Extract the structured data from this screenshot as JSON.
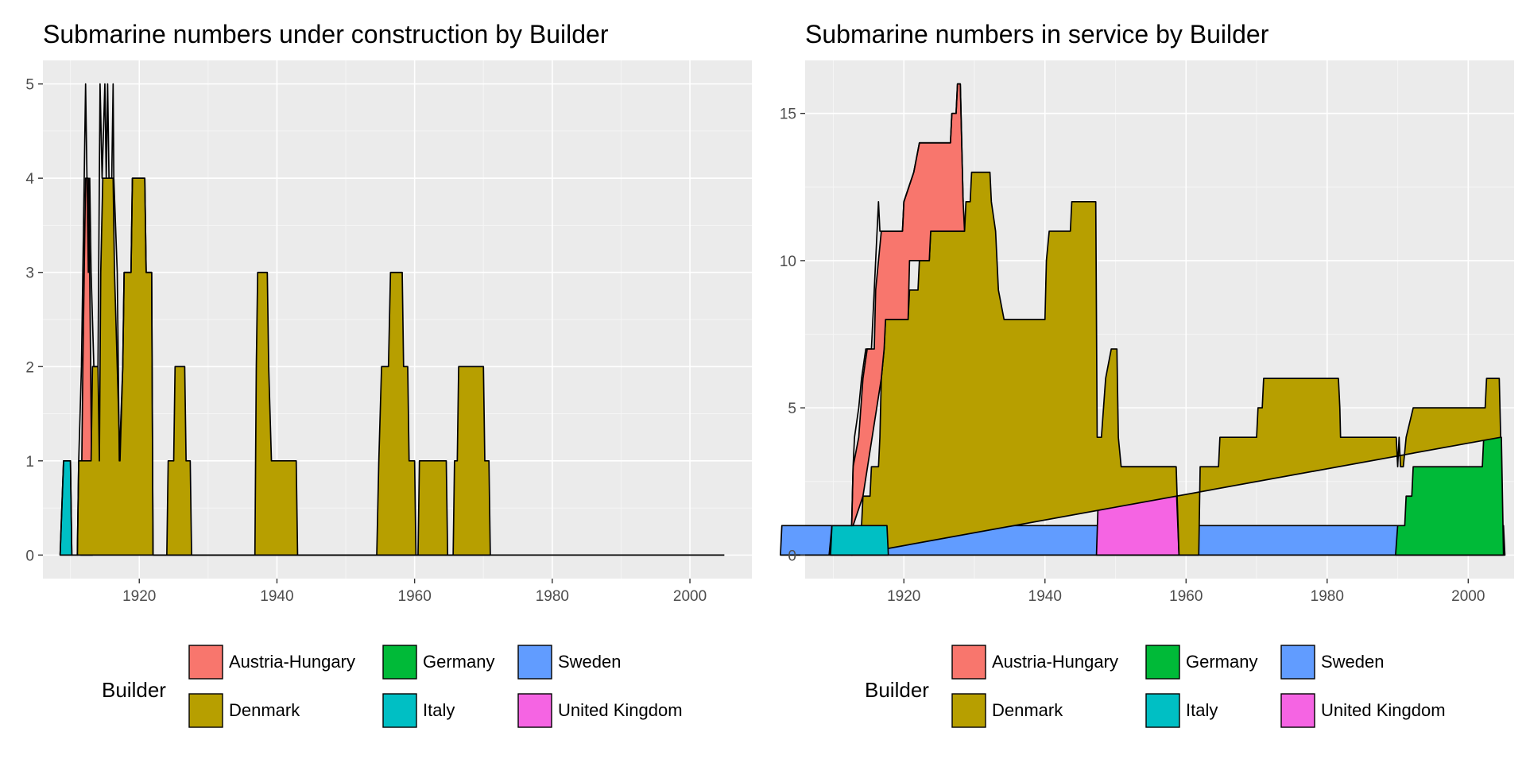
{
  "chart_data": [
    {
      "type": "area",
      "title": "Submarine numbers under construction by Builder",
      "xlabel": "",
      "ylabel": "",
      "xlim": [
        1906,
        2009
      ],
      "ylim": [
        -0.25,
        5.25
      ],
      "xticks": [
        1920,
        1940,
        1960,
        1980,
        2000
      ],
      "yticks": [
        0,
        1,
        2,
        3,
        4,
        5
      ],
      "grid": true,
      "legend": {
        "title": "Builder",
        "position": "bottom",
        "entries": [
          "Austria-Hungary",
          "Denmark",
          "Germany",
          "Italy",
          "Sweden",
          "United Kingdom"
        ]
      },
      "series": [
        {
          "name": "Italy",
          "color": "#00BFC4",
          "points": [
            [
              1908.5,
              0
            ],
            [
              1909,
              1
            ],
            [
              1910,
              1
            ],
            [
              1910.2,
              0
            ]
          ]
        },
        {
          "name": "Austria-Hungary",
          "color": "#F8766D",
          "points": [
            [
              1911.5,
              0
            ],
            [
              1911.8,
              2
            ],
            [
              1912,
              3
            ],
            [
              1912.2,
              4
            ],
            [
              1912.6,
              4
            ],
            [
              1912.8,
              3
            ],
            [
              1913.2,
              0
            ]
          ]
        },
        {
          "name": "Denmark",
          "color": "#B79F00",
          "points": [
            [
              1911,
              0
            ],
            [
              1911.2,
              1
            ],
            [
              1913,
              1
            ],
            [
              1913.2,
              2
            ],
            [
              1914,
              2
            ],
            [
              1914.2,
              1
            ],
            [
              1914.4,
              3
            ],
            [
              1914.7,
              4
            ],
            [
              1916.2,
              4
            ],
            [
              1916.4,
              3
            ],
            [
              1916.8,
              2
            ],
            [
              1917.2,
              1
            ],
            [
              1917.6,
              2
            ],
            [
              1917.8,
              3
            ],
            [
              1918.8,
              3
            ],
            [
              1919,
              4
            ],
            [
              1920.8,
              4
            ],
            [
              1921,
              3
            ],
            [
              1921.8,
              3
            ],
            [
              1922,
              0
            ],
            [
              1924,
              0
            ],
            [
              1924.2,
              1
            ],
            [
              1925,
              1
            ],
            [
              1925.2,
              2
            ],
            [
              1926.6,
              2
            ],
            [
              1926.8,
              1
            ],
            [
              1927.4,
              1
            ],
            [
              1927.6,
              0
            ],
            [
              1936.8,
              0
            ],
            [
              1937,
              2
            ],
            [
              1937.2,
              3
            ],
            [
              1938.6,
              3
            ],
            [
              1938.8,
              2
            ],
            [
              1939.2,
              1
            ],
            [
              1942.8,
              1
            ],
            [
              1943,
              0
            ],
            [
              1954.5,
              0
            ],
            [
              1954.8,
              1
            ],
            [
              1955.2,
              2
            ],
            [
              1956.2,
              2
            ],
            [
              1956.5,
              3
            ],
            [
              1958.2,
              3
            ],
            [
              1958.4,
              2
            ],
            [
              1959,
              2
            ],
            [
              1959.2,
              1
            ],
            [
              1960,
              1
            ],
            [
              1960.2,
              0
            ],
            [
              1960.5,
              0
            ],
            [
              1960.7,
              1
            ],
            [
              1964.6,
              1
            ],
            [
              1964.8,
              0
            ],
            [
              1965.6,
              0
            ],
            [
              1965.8,
              1
            ],
            [
              1966.2,
              1
            ],
            [
              1966.4,
              2
            ],
            [
              1970,
              2
            ],
            [
              1970.2,
              1
            ],
            [
              1970.8,
              1
            ],
            [
              1971,
              0
            ]
          ]
        }
      ],
      "total_outline": [
        [
          1908.5,
          0
        ],
        [
          1909,
          1
        ],
        [
          1910,
          1
        ],
        [
          1910.2,
          0
        ],
        [
          1911,
          0
        ],
        [
          1911.2,
          1
        ],
        [
          1911.6,
          2
        ],
        [
          1911.8,
          3
        ],
        [
          1912,
          4
        ],
        [
          1912.2,
          5
        ],
        [
          1912.4,
          4
        ],
        [
          1912.6,
          3
        ],
        [
          1912.8,
          4
        ],
        [
          1913,
          3
        ],
        [
          1913.4,
          2
        ],
        [
          1914,
          2
        ],
        [
          1914.3,
          5
        ],
        [
          1914.6,
          4
        ],
        [
          1915,
          5
        ],
        [
          1915.2,
          4
        ],
        [
          1915.4,
          5
        ],
        [
          1915.6,
          4
        ],
        [
          1916,
          4
        ],
        [
          1916.2,
          5
        ],
        [
          1916.3,
          4
        ],
        [
          1916.8,
          3
        ],
        [
          1917.1,
          1
        ],
        [
          1917.6,
          2
        ],
        [
          1917.8,
          3
        ],
        [
          1918.8,
          3
        ],
        [
          1919,
          4
        ],
        [
          1920.8,
          4
        ],
        [
          1921,
          3
        ],
        [
          1921.8,
          3
        ],
        [
          1922,
          0
        ],
        [
          2005,
          0
        ]
      ]
    },
    {
      "type": "area",
      "title": "Submarine numbers in service by Builder",
      "xlabel": "",
      "ylabel": "",
      "xlim": [
        1906,
        2006.5
      ],
      "ylim": [
        -0.8,
        16.8
      ],
      "xticks": [
        1920,
        1940,
        1960,
        1980,
        2000
      ],
      "yticks": [
        0,
        5,
        10,
        15
      ],
      "grid": true,
      "legend": {
        "title": "Builder",
        "position": "bottom",
        "entries": [
          "Austria-Hungary",
          "Denmark",
          "Germany",
          "Italy",
          "Sweden",
          "United Kingdom"
        ]
      },
      "series": [
        {
          "name": "Sweden",
          "color": "#619CFF",
          "points": [
            [
              1902.5,
              0
            ],
            [
              1902.7,
              1
            ],
            [
              2005,
              1
            ],
            [
              2005.2,
              0
            ]
          ]
        },
        {
          "name": "Germany",
          "color": "#00BA38",
          "points": [
            [
              1989.7,
              0
            ],
            [
              1990,
              1
            ],
            [
              1991,
              1
            ],
            [
              1991.2,
              2
            ],
            [
              1992,
              2
            ],
            [
              1992.2,
              3
            ],
            [
              2002,
              3
            ],
            [
              2002.2,
              4
            ],
            [
              2004.7,
              4
            ],
            [
              2005,
              0
            ]
          ]
        },
        {
          "name": "United Kingdom",
          "color": "#F564E3",
          "points": [
            [
              1947.3,
              0
            ],
            [
              1947.7,
              3
            ],
            [
              1958.5,
              3
            ],
            [
              1959,
              0
            ]
          ]
        },
        {
          "name": "Denmark",
          "color": "#B79F00",
          "points": [
            [
              1912.6,
              0
            ],
            [
              1912.8,
              1
            ],
            [
              1914,
              1
            ],
            [
              1914.2,
              2
            ],
            [
              1915.2,
              2
            ],
            [
              1915.4,
              3
            ],
            [
              1916.4,
              3
            ],
            [
              1916.6,
              4
            ],
            [
              1916.8,
              6
            ],
            [
              1917.2,
              7
            ],
            [
              1917.4,
              8
            ],
            [
              1920.6,
              8
            ],
            [
              1920.8,
              9
            ],
            [
              1922,
              9
            ],
            [
              1922.2,
              10
            ],
            [
              1923.6,
              10
            ],
            [
              1923.8,
              11
            ],
            [
              1928.6,
              11
            ],
            [
              1928.8,
              12
            ],
            [
              1929.4,
              12
            ],
            [
              1929.6,
              13
            ],
            [
              1932.2,
              13
            ],
            [
              1932.4,
              12
            ],
            [
              1933,
              11
            ],
            [
              1933.2,
              10
            ],
            [
              1933.4,
              9
            ],
            [
              1934.2,
              8
            ],
            [
              1934.6,
              8
            ],
            [
              1940,
              8
            ],
            [
              1940.2,
              10
            ],
            [
              1940.6,
              11
            ],
            [
              1943.6,
              11
            ],
            [
              1943.8,
              12
            ],
            [
              1947.2,
              12
            ],
            [
              1947.4,
              4
            ],
            [
              1948,
              4
            ],
            [
              1948.6,
              6
            ],
            [
              1949.4,
              7
            ],
            [
              1950.2,
              7
            ],
            [
              1950.4,
              4
            ],
            [
              1950.8,
              3
            ],
            [
              1958.6,
              3
            ],
            [
              1959,
              0
            ],
            [
              1961.8,
              0
            ],
            [
              1962,
              3
            ],
            [
              1964.6,
              3
            ],
            [
              1964.8,
              4
            ],
            [
              1970,
              4
            ],
            [
              1970.2,
              5
            ],
            [
              1970.8,
              5
            ],
            [
              1971,
              6
            ],
            [
              1981.6,
              6
            ],
            [
              1981.8,
              5
            ],
            [
              1981.9,
              4
            ],
            [
              1989.8,
              4
            ],
            [
              1990,
              3
            ],
            [
              1990.2,
              4
            ],
            [
              1990.4,
              3
            ],
            [
              1990.8,
              3
            ],
            [
              1991.2,
              4
            ],
            [
              1992.2,
              5
            ],
            [
              2002.4,
              5
            ],
            [
              2002.6,
              6
            ],
            [
              2004.4,
              6
            ],
            [
              2004.6,
              4
            ]
          ]
        },
        {
          "name": "Italy",
          "color": "#00BFC4",
          "points": [
            [
              1909.6,
              0
            ],
            [
              1909.8,
              1
            ],
            [
              1917.6,
              1
            ],
            [
              1917.8,
              0
            ]
          ]
        },
        {
          "name": "Austria-Hungary",
          "color": "#F8766D",
          "points": [
            [
              1912.6,
              1
            ],
            [
              1912.8,
              3
            ],
            [
              1913.6,
              4
            ],
            [
              1914.2,
              6
            ],
            [
              1914.8,
              7
            ],
            [
              1915.8,
              7
            ],
            [
              1916,
              9
            ],
            [
              1916.8,
              11
            ],
            [
              1919.8,
              11
            ],
            [
              1920,
              12
            ],
            [
              1921.4,
              13
            ],
            [
              1922.2,
              14
            ],
            [
              1926.6,
              14
            ],
            [
              1926.8,
              15
            ],
            [
              1927.4,
              15
            ],
            [
              1927.6,
              16
            ],
            [
              1928,
              16
            ],
            [
              1928.4,
              12
            ],
            [
              1928.6,
              11
            ],
            [
              1923.8,
              11
            ],
            [
              1923.6,
              10
            ],
            [
              1920.8,
              10
            ],
            [
              1920.6,
              8
            ],
            [
              1917.4,
              8
            ],
            [
              1917.2,
              7
            ],
            [
              1916.8,
              6
            ],
            [
              1914.2,
              2
            ],
            [
              1912.8,
              1
            ]
          ]
        }
      ],
      "total_outline": [
        [
          1909.4,
          0
        ],
        [
          1909.8,
          1
        ],
        [
          1912.6,
          1
        ],
        [
          1912.8,
          3
        ],
        [
          1913,
          4
        ],
        [
          1913.6,
          5
        ],
        [
          1914,
          6
        ],
        [
          1914.6,
          7
        ],
        [
          1915.4,
          7
        ],
        [
          1915.6,
          8
        ],
        [
          1915.8,
          9
        ],
        [
          1916.2,
          11
        ],
        [
          1916.4,
          12
        ],
        [
          1916.6,
          11
        ],
        [
          1919.8,
          11
        ],
        [
          1920,
          12
        ],
        [
          1921.4,
          13
        ],
        [
          1922.2,
          14
        ],
        [
          1926.6,
          14
        ],
        [
          1926.8,
          15
        ],
        [
          1927.4,
          15
        ],
        [
          1927.6,
          16
        ],
        [
          1928,
          16
        ],
        [
          1928.4,
          12
        ]
      ]
    }
  ]
}
